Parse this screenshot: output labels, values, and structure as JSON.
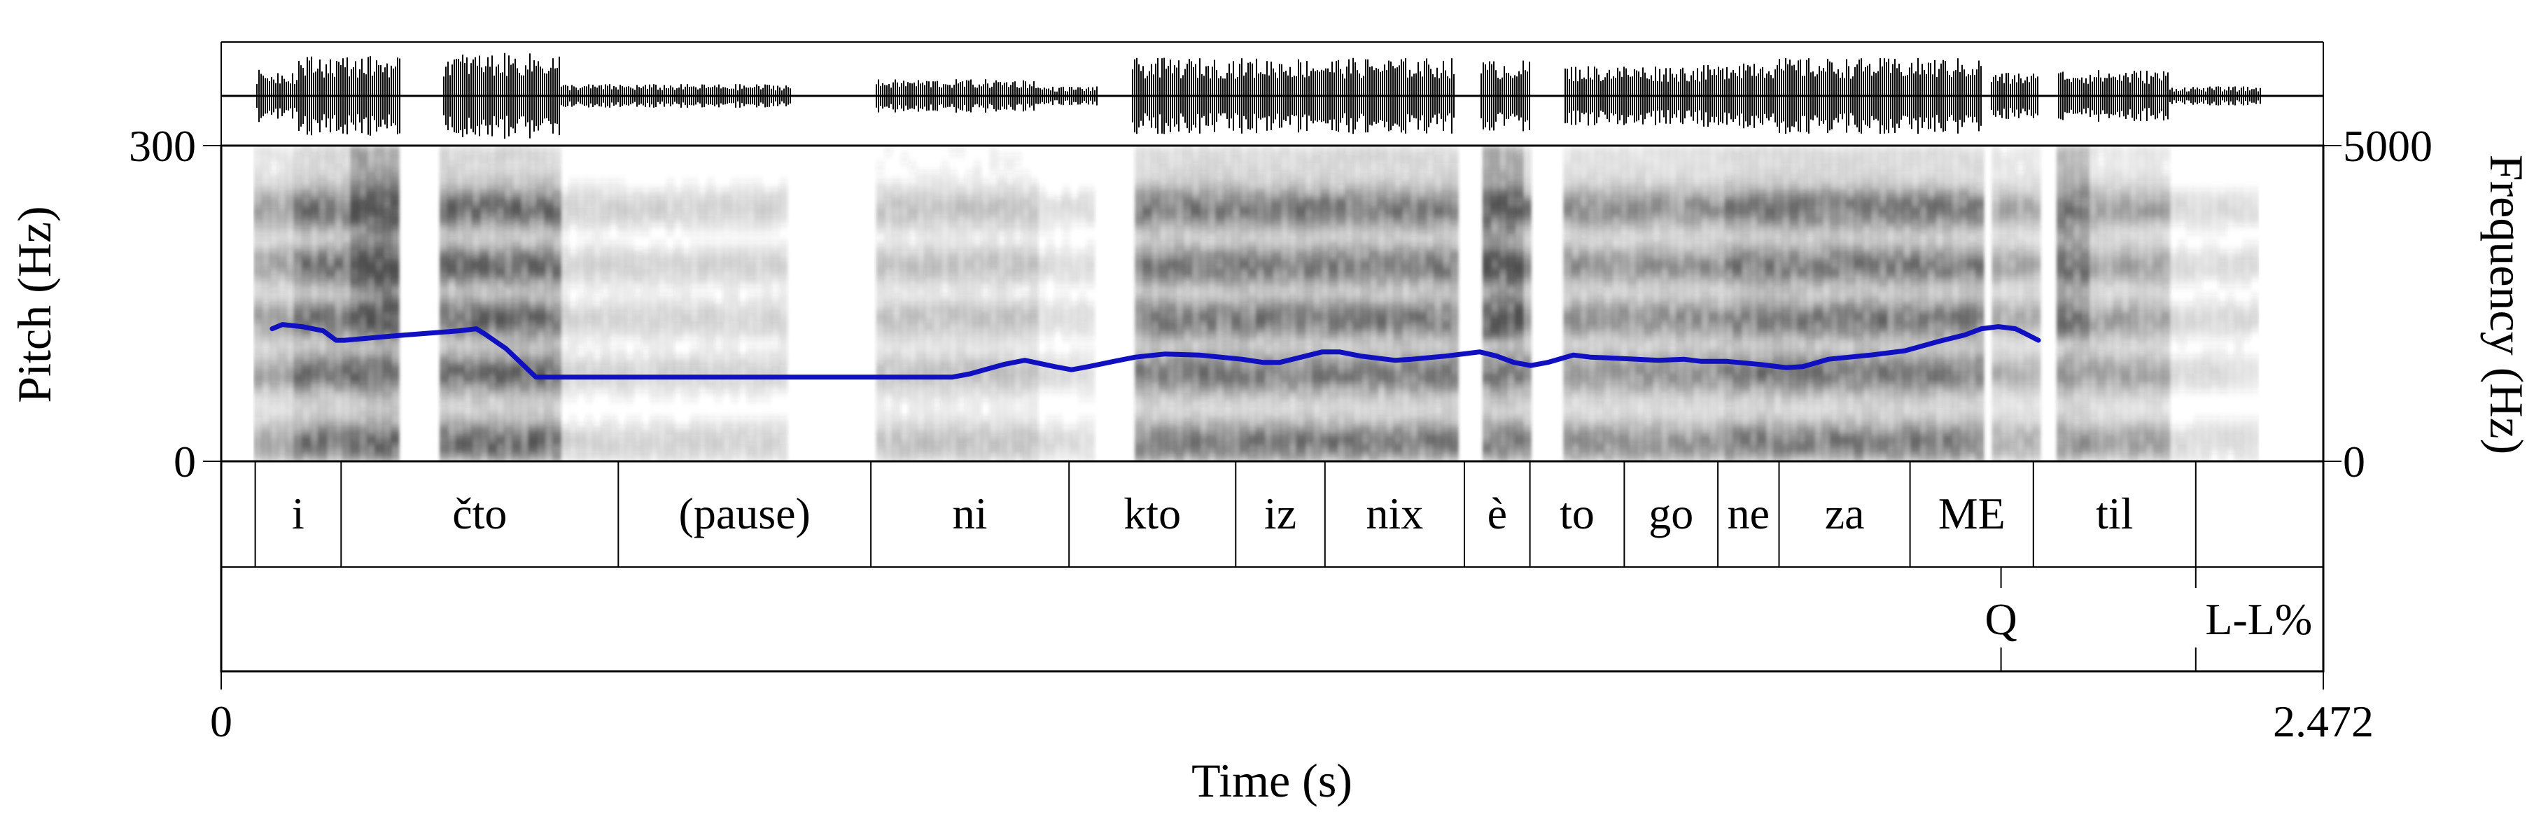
{
  "axes": {
    "pitch_label": "Pitch (Hz)",
    "pitch_max": "300",
    "pitch_min": "0",
    "freq_label": "Frequency (Hz)",
    "freq_max": "5000",
    "freq_min": "0",
    "time_label": "Time (s)",
    "time_start": "0",
    "time_end": "2.472"
  },
  "words": [
    {
      "text": "i",
      "start": 0.04,
      "end": 0.141
    },
    {
      "text": "čto",
      "start": 0.141,
      "end": 0.467
    },
    {
      "text": "(pause)",
      "start": 0.467,
      "end": 0.764
    },
    {
      "text": "ni",
      "start": 0.764,
      "end": 0.997
    },
    {
      "text": "kto",
      "start": 0.997,
      "end": 1.193
    },
    {
      "text": "iz",
      "start": 1.193,
      "end": 1.298
    },
    {
      "text": "nix",
      "start": 1.298,
      "end": 1.462
    },
    {
      "text": "è",
      "start": 1.462,
      "end": 1.539
    },
    {
      "text": "to",
      "start": 1.539,
      "end": 1.65
    },
    {
      "text": "go",
      "start": 1.65,
      "end": 1.76
    },
    {
      "text": "ne",
      "start": 1.76,
      "end": 1.832
    },
    {
      "text": "za",
      "start": 1.832,
      "end": 1.986
    },
    {
      "text": "ME",
      "start": 1.986,
      "end": 2.131
    },
    {
      "text": "til",
      "start": 2.131,
      "end": 2.322
    }
  ],
  "tones": [
    {
      "text": "Q",
      "time": 2.093
    },
    {
      "text": "L-L%",
      "time": 2.322
    }
  ],
  "colors": {
    "pitch_track": "#1010c0",
    "spectrogram": "#333333"
  },
  "chart_data": {
    "type": "line",
    "xlabel": "Time (s)",
    "ylabel": "Pitch (Hz)",
    "xlim": [
      0,
      2.472
    ],
    "ylim": [
      0,
      300
    ],
    "x": [
      0.06,
      0.072,
      0.095,
      0.12,
      0.135,
      0.145,
      0.2,
      0.28,
      0.3,
      0.31,
      0.335,
      0.37,
      0.5,
      0.7,
      0.86,
      0.88,
      0.92,
      0.945,
      0.98,
      1.0,
      1.02,
      1.05,
      1.075,
      1.11,
      1.15,
      1.2,
      1.225,
      1.245,
      1.285,
      1.295,
      1.315,
      1.34,
      1.38,
      1.4,
      1.44,
      1.48,
      1.5,
      1.52,
      1.54,
      1.56,
      1.59,
      1.61,
      1.64,
      1.69,
      1.72,
      1.74,
      1.77,
      1.81,
      1.84,
      1.86,
      1.89,
      1.94,
      1.98,
      2.02,
      2.05,
      2.07,
      2.09,
      2.11,
      2.12,
      2.137
    ],
    "series": [
      {
        "name": "",
        "values": [
          126,
          130,
          128,
          124,
          115,
          115,
          119,
          124,
          126,
          121,
          107,
          80,
          80,
          80,
          80,
          83,
          92,
          96,
          90,
          87,
          90,
          95,
          99,
          102,
          101,
          97,
          94,
          94,
          102,
          104,
          104,
          100,
          96,
          97,
          100,
          104,
          100,
          94,
          91,
          94,
          101,
          99,
          98,
          96,
          97,
          95,
          95,
          92,
          89,
          90,
          97,
          101,
          105,
          114,
          120,
          126,
          128,
          126,
          122,
          115
        ]
      }
    ]
  }
}
